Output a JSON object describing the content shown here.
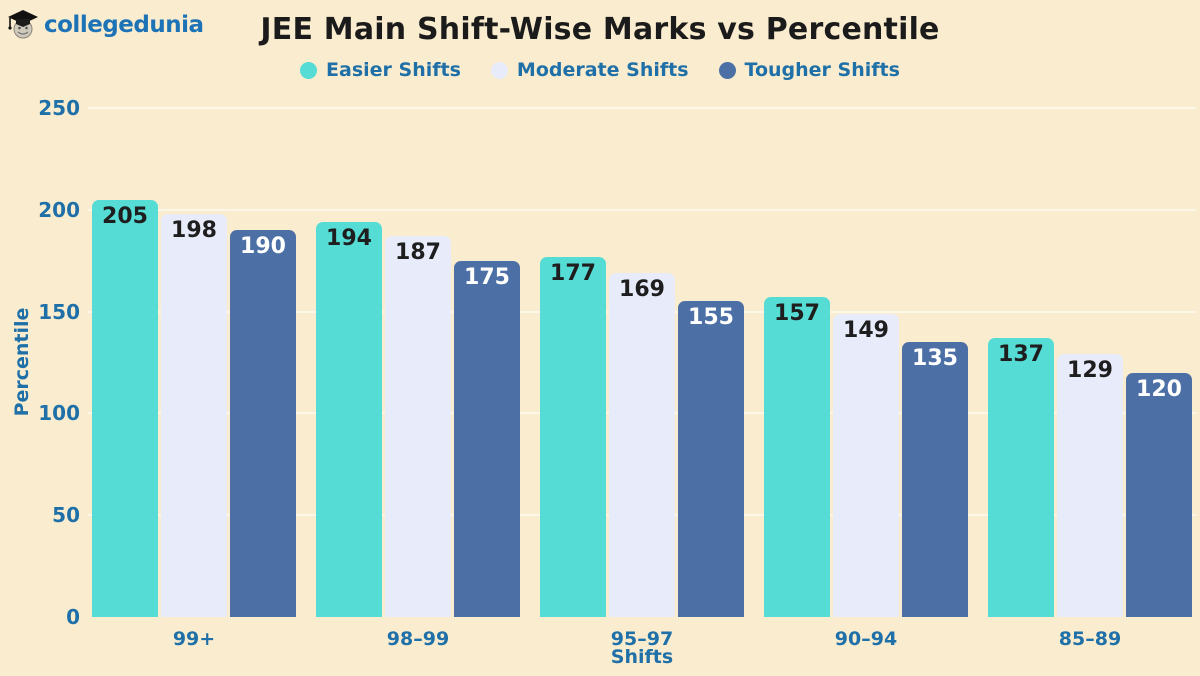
{
  "logo": {
    "text": "collegedunia",
    "icon": "graduation-cap-mascot-icon"
  },
  "title": "JEE Main Shift-Wise Marks vs Percentile",
  "chart_data": {
    "type": "bar",
    "title": "JEE Main Shift-Wise Marks vs Percentile",
    "categories": [
      "99+",
      "98–99",
      "95–97",
      "90–94",
      "85–89"
    ],
    "series": [
      {
        "name": "Easier Shifts",
        "color": "#55DCD5",
        "label_color": "#1E1E1E",
        "values": [
          205,
          194,
          177,
          157,
          137
        ]
      },
      {
        "name": "Moderate Shifts",
        "color": "#E7EBFA",
        "label_color": "#1E1E1E",
        "values": [
          198,
          187,
          169,
          149,
          129
        ]
      },
      {
        "name": "Tougher Shifts",
        "color": "#4C70A6",
        "label_color": "#FFFFFF",
        "values": [
          190,
          175,
          155,
          135,
          120
        ]
      }
    ],
    "xlabel": "Shifts",
    "ylabel": "Percentile",
    "ylim": [
      0,
      250
    ],
    "yticks": [
      0,
      50,
      100,
      150,
      200,
      250
    ],
    "grid": true,
    "legend_position": "top",
    "value_labels": "inside-top"
  },
  "colors": {
    "background": "#FAEDCF",
    "axis_text": "#1F70A8",
    "title_text": "#1B1B1B",
    "logo_text": "#1D73B5",
    "gridline": "rgba(255,255,255,0.55)"
  }
}
